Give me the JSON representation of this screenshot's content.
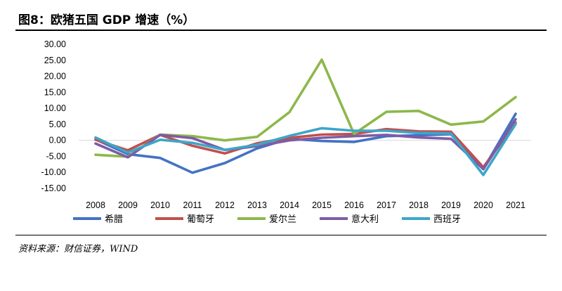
{
  "figure": {
    "title": "图8：欧猪五国 GDP 增速（%）",
    "source": "资料来源：财信证券，WIND"
  },
  "chart_data": {
    "type": "line",
    "title": "图8：欧猪五国 GDP 增速（%）",
    "xlabel": "",
    "ylabel": "",
    "x": [
      "2008",
      "2009",
      "2010",
      "2011",
      "2012",
      "2013",
      "2014",
      "2015",
      "2016",
      "2017",
      "2018",
      "2019",
      "2020",
      "2021"
    ],
    "ylim": [
      -15,
      30
    ],
    "yticks": [
      -15,
      -10,
      -5,
      0,
      5,
      10,
      15,
      20,
      25,
      30
    ],
    "ytick_labels": [
      "-15.00",
      "-10.00",
      "-5.00",
      "0.00",
      "5.00",
      "10.00",
      "15.00",
      "20.00",
      "25.00",
      "30.00"
    ],
    "grid": false,
    "legend_position": "bottom",
    "series": [
      {
        "name": "希腊",
        "color": "#4472C4",
        "values": [
          0.3,
          -4.3,
          -5.5,
          -10.1,
          -7.1,
          -2.5,
          0.5,
          -0.2,
          -0.5,
          1.3,
          1.6,
          1.9,
          -9.0,
          8.3
        ]
      },
      {
        "name": "葡萄牙",
        "color": "#C0504D",
        "values": [
          0.2,
          -3.1,
          1.7,
          -1.7,
          -4.1,
          -0.9,
          0.8,
          1.8,
          2.0,
          3.5,
          2.8,
          2.7,
          -8.4,
          5.5
        ]
      },
      {
        "name": "爱尔兰",
        "color": "#8DB84A",
        "values": [
          -4.5,
          -5.1,
          1.8,
          1.3,
          0.0,
          1.1,
          8.8,
          25.2,
          2.0,
          8.9,
          9.2,
          4.9,
          5.9,
          13.5
        ]
      },
      {
        "name": "意大利",
        "color": "#7E5CA5",
        "values": [
          -1.0,
          -5.3,
          1.7,
          0.7,
          -3.0,
          -1.8,
          0.0,
          0.8,
          1.3,
          1.7,
          0.9,
          0.5,
          -9.0,
          6.6
        ]
      },
      {
        "name": "西班牙",
        "color": "#3DA6C9",
        "values": [
          0.9,
          -3.8,
          0.2,
          -0.8,
          -3.0,
          -1.4,
          1.4,
          3.8,
          3.0,
          3.0,
          2.3,
          2.1,
          -10.8,
          5.1
        ]
      }
    ]
  }
}
